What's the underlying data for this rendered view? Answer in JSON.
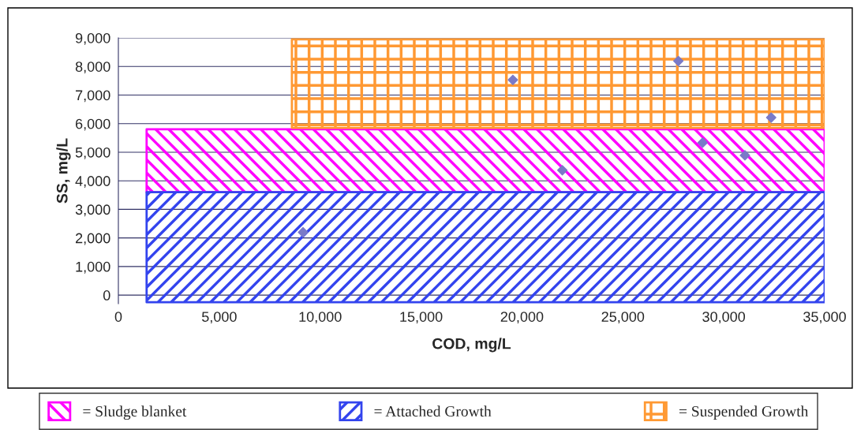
{
  "chart_data": {
    "type": "scatter",
    "xlabel": "COD, mg/L",
    "ylabel": "SS, mg/L",
    "xlim": [
      0,
      35000
    ],
    "ylim": [
      -300,
      9000
    ],
    "xticks": [
      {
        "value": 0,
        "label": "0"
      },
      {
        "value": 5000,
        "label": "5,000"
      },
      {
        "value": 10000,
        "label": "10,000"
      },
      {
        "value": 15000,
        "label": "15,000"
      },
      {
        "value": 20000,
        "label": "20,000"
      },
      {
        "value": 25000,
        "label": "25,000"
      },
      {
        "value": 30000,
        "label": "30,000"
      },
      {
        "value": 35000,
        "label": "35,000"
      }
    ],
    "yticks": [
      {
        "value": 0,
        "label": "0"
      },
      {
        "value": 1000,
        "label": "1,000"
      },
      {
        "value": 2000,
        "label": "2,000"
      },
      {
        "value": 3000,
        "label": "3,000"
      },
      {
        "value": 4000,
        "label": "4,000"
      },
      {
        "value": 5000,
        "label": "5,000"
      },
      {
        "value": 6000,
        "label": "6,000"
      },
      {
        "value": 7000,
        "label": "7,000"
      },
      {
        "value": 8000,
        "label": "8,000"
      },
      {
        "value": 9000,
        "label": "9,000"
      }
    ],
    "grid": "y",
    "legend": "bottom",
    "series": [
      {
        "name": "= Sludge blanket",
        "color": "#ff00ff",
        "type": "area",
        "x": [
          1400,
          1400,
          35000,
          35000
        ],
        "values": [
          3600,
          5800,
          5800,
          3600
        ]
      },
      {
        "name": "= Attached Growth",
        "color": "#3344ee",
        "type": "area",
        "x": [
          1400,
          1400,
          35000,
          35000
        ],
        "values": [
          -250,
          3600,
          3600,
          -250
        ]
      },
      {
        "name": "= Suspended Growth",
        "color": "#ff9933",
        "type": "area",
        "x": [
          8600,
          8600,
          35000,
          35000
        ],
        "values": [
          5850,
          8950,
          8950,
          5850
        ]
      },
      {
        "color": "#7a7ac8",
        "marker": "diamond",
        "x": [
          9150,
          19550,
          22000,
          27750,
          28950,
          31050,
          32350
        ],
        "values": [
          2200,
          7530,
          4370,
          8190,
          5330,
          4890,
          6210
        ]
      }
    ]
  }
}
